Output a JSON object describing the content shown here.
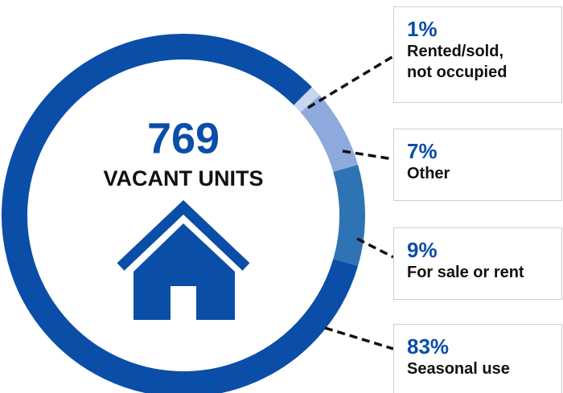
{
  "chart_data": {
    "type": "donut",
    "title": "769",
    "subtitle": "VACANT UNITS",
    "categories": [
      "Rented/sold, not occupied",
      "Other",
      "For sale or rent",
      "Seasonal use"
    ],
    "values": [
      1,
      7,
      9,
      83
    ],
    "value_labels": [
      "1%",
      "7%",
      "9%",
      "83%"
    ],
    "colors": [
      "#c9d6ef",
      "#8eaadc",
      "#2e74b5",
      "#0b4ea8"
    ]
  }
}
